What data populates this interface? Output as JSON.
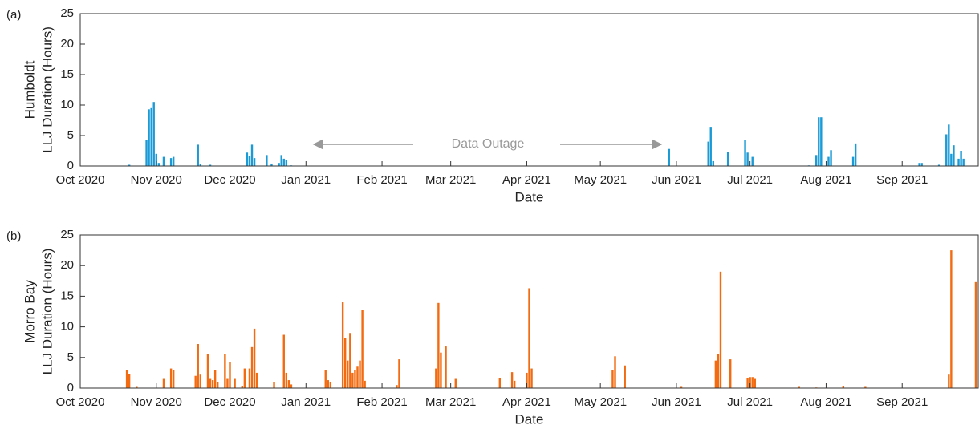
{
  "chart_data": [
    {
      "type": "bar",
      "panel_label": "(a)",
      "ylabel": [
        "Humboldt",
        "LLJ Duration (Hours)"
      ],
      "xlabel": "Date",
      "color": "#1a9ad6",
      "annotation": "Data Outage",
      "xlim": [
        0,
        366
      ],
      "ylim": [
        0,
        25
      ],
      "yticks": [
        0,
        5,
        10,
        15,
        20,
        25
      ],
      "xticks": [
        {
          "value": 0,
          "label": "Oct 2020"
        },
        {
          "value": 31,
          "label": "Nov 2020"
        },
        {
          "value": 61,
          "label": "Dec 2020"
        },
        {
          "value": 92,
          "label": "Jan 2021"
        },
        {
          "value": 123,
          "label": "Feb 2021"
        },
        {
          "value": 151,
          "label": "Mar 2021"
        },
        {
          "value": 182,
          "label": "Apr 2021"
        },
        {
          "value": 212,
          "label": "May 2021"
        },
        {
          "value": 243,
          "label": "Jun 2021"
        },
        {
          "value": 273,
          "label": "Jul 2021"
        },
        {
          "value": 304,
          "label": "Aug 2021"
        },
        {
          "value": 335,
          "label": "Sep 2021"
        }
      ],
      "x": [
        20,
        27,
        28,
        29,
        30,
        31,
        32,
        34,
        37,
        38,
        48,
        49,
        53,
        68,
        69,
        70,
        71,
        76,
        78,
        81,
        82,
        83,
        84,
        86,
        240,
        256,
        257,
        258,
        264,
        271,
        272,
        274,
        297,
        300,
        301,
        302,
        305,
        306,
        315,
        316,
        342,
        343,
        350,
        353,
        354,
        355,
        356,
        358,
        359,
        360
      ],
      "values": [
        0.2,
        4.3,
        9.3,
        9.5,
        10.5,
        2,
        0.5,
        1.5,
        1.3,
        1.5,
        3.5,
        0.3,
        0.2,
        2.2,
        1.6,
        3.5,
        1.3,
        1.8,
        0.4,
        0.5,
        1.8,
        1.2,
        1.0,
        0.1,
        2.8,
        4,
        6.3,
        0.8,
        2.3,
        4.3,
        2.2,
        1.5,
        0.1,
        1.8,
        8,
        8,
        1.5,
        2.6,
        1.5,
        3.7,
        0.5,
        0.5,
        0.2,
        5.2,
        6.8,
        2,
        3.4,
        1.2,
        2.5,
        1.2
      ]
    },
    {
      "type": "bar",
      "panel_label": "(b)",
      "ylabel": [
        "Morro Bay",
        "LLJ Duration (Hours)"
      ],
      "xlabel": "Date",
      "color": "#f26b10",
      "xlim": [
        0,
        366
      ],
      "ylim": [
        0,
        25
      ],
      "yticks": [
        0,
        5,
        10,
        15,
        20,
        25
      ],
      "xticks": [
        {
          "value": 0,
          "label": "Oct 2020"
        },
        {
          "value": 31,
          "label": "Nov 2020"
        },
        {
          "value": 61,
          "label": "Dec 2020"
        },
        {
          "value": 92,
          "label": "Jan 2021"
        },
        {
          "value": 123,
          "label": "Feb 2021"
        },
        {
          "value": 151,
          "label": "Mar 2021"
        },
        {
          "value": 182,
          "label": "Apr 2021"
        },
        {
          "value": 212,
          "label": "May 2021"
        },
        {
          "value": 243,
          "label": "Jun 2021"
        },
        {
          "value": 273,
          "label": "Jul 2021"
        },
        {
          "value": 304,
          "label": "Aug 2021"
        },
        {
          "value": 335,
          "label": "Sep 2021"
        }
      ],
      "x": [
        19,
        20,
        23,
        34,
        37,
        38,
        47,
        48,
        49,
        52,
        53,
        54,
        55,
        56,
        59,
        60,
        61,
        63,
        66,
        67,
        69,
        70,
        71,
        72,
        79,
        83,
        84,
        85,
        86,
        100,
        101,
        102,
        107,
        108,
        109,
        110,
        111,
        112,
        113,
        114,
        115,
        116,
        129,
        130,
        145,
        146,
        147,
        149,
        153,
        171,
        176,
        177,
        182,
        183,
        184,
        217,
        218,
        222,
        245,
        259,
        260,
        261,
        265,
        272,
        273,
        274,
        275,
        293,
        300,
        311,
        320,
        354,
        355,
        365
      ],
      "values": [
        3,
        2.3,
        0.2,
        1.5,
        3.2,
        3,
        2,
        7.2,
        2.2,
        5.5,
        1.5,
        1.3,
        3,
        1,
        5.5,
        1.5,
        4.3,
        1.5,
        0.3,
        3.2,
        3.2,
        6.7,
        9.7,
        2.5,
        1,
        8.7,
        2.5,
        1.3,
        0.6,
        3,
        1.3,
        1,
        14,
        8.2,
        4.5,
        9,
        2.5,
        3,
        3.5,
        4.5,
        12.8,
        1.2,
        0.5,
        4.7,
        3.2,
        13.9,
        5.8,
        6.8,
        1.5,
        1.7,
        2.6,
        1.2,
        2.5,
        16.3,
        3.2,
        3,
        5.2,
        3.7,
        0.2,
        4.5,
        5.5,
        19,
        4.7,
        1.7,
        1.8,
        1.8,
        1.5,
        0.2,
        0.1,
        0.3,
        0.2,
        2.2,
        22.5,
        17.3
      ]
    }
  ]
}
